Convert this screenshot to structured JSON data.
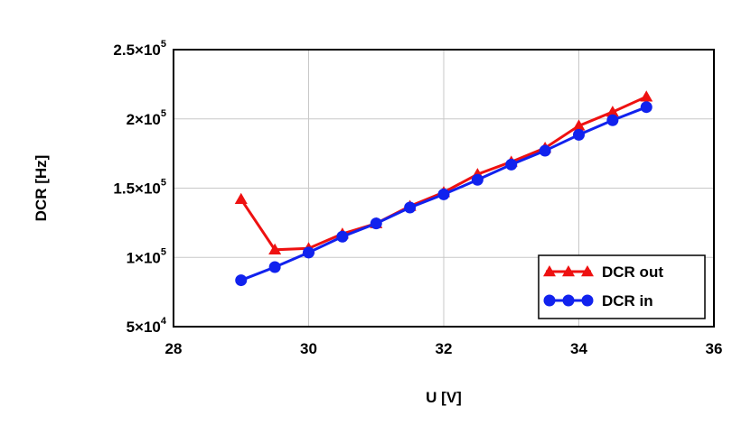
{
  "chart_data": {
    "type": "line",
    "xlabel": "U [V]",
    "ylabel": "DCR [Hz]",
    "xlim": [
      28,
      36
    ],
    "ylim": [
      50000,
      250000
    ],
    "grid": true,
    "legend_position": "bottom-right",
    "x_ticks": [
      {
        "value": 28,
        "label": "28"
      },
      {
        "value": 30,
        "label": "30"
      },
      {
        "value": 32,
        "label": "32"
      },
      {
        "value": 34,
        "label": "34"
      },
      {
        "value": 36,
        "label": "36"
      }
    ],
    "y_ticks": [
      {
        "value": 50000,
        "mant": "5×10",
        "exp": "4"
      },
      {
        "value": 100000,
        "mant": "1×10",
        "exp": "5"
      },
      {
        "value": 150000,
        "mant": "1.5×10",
        "exp": "5"
      },
      {
        "value": 200000,
        "mant": "2×10",
        "exp": "5"
      },
      {
        "value": 250000,
        "mant": "2.5×10",
        "exp": "5"
      }
    ],
    "series": [
      {
        "name": "DCR out",
        "color": "#ee1111",
        "marker": "triangle",
        "x": [
          29,
          29.5,
          30,
          30.5,
          31,
          31.5,
          32,
          32.5,
          33,
          33.5,
          34,
          34.5,
          35
        ],
        "y": [
          142000,
          105500,
          106500,
          117000,
          124500,
          137000,
          147000,
          160000,
          169000,
          179000,
          195000,
          205000,
          216000
        ]
      },
      {
        "name": "DCR in",
        "color": "#1122ee",
        "marker": "circle",
        "x": [
          29,
          29.5,
          30,
          30.5,
          31,
          31.5,
          32,
          32.5,
          33,
          33.5,
          34,
          34.5,
          35
        ],
        "y": [
          83500,
          93000,
          103500,
          115000,
          124500,
          136000,
          145500,
          156000,
          167000,
          177000,
          188500,
          199000,
          208500
        ]
      }
    ]
  }
}
